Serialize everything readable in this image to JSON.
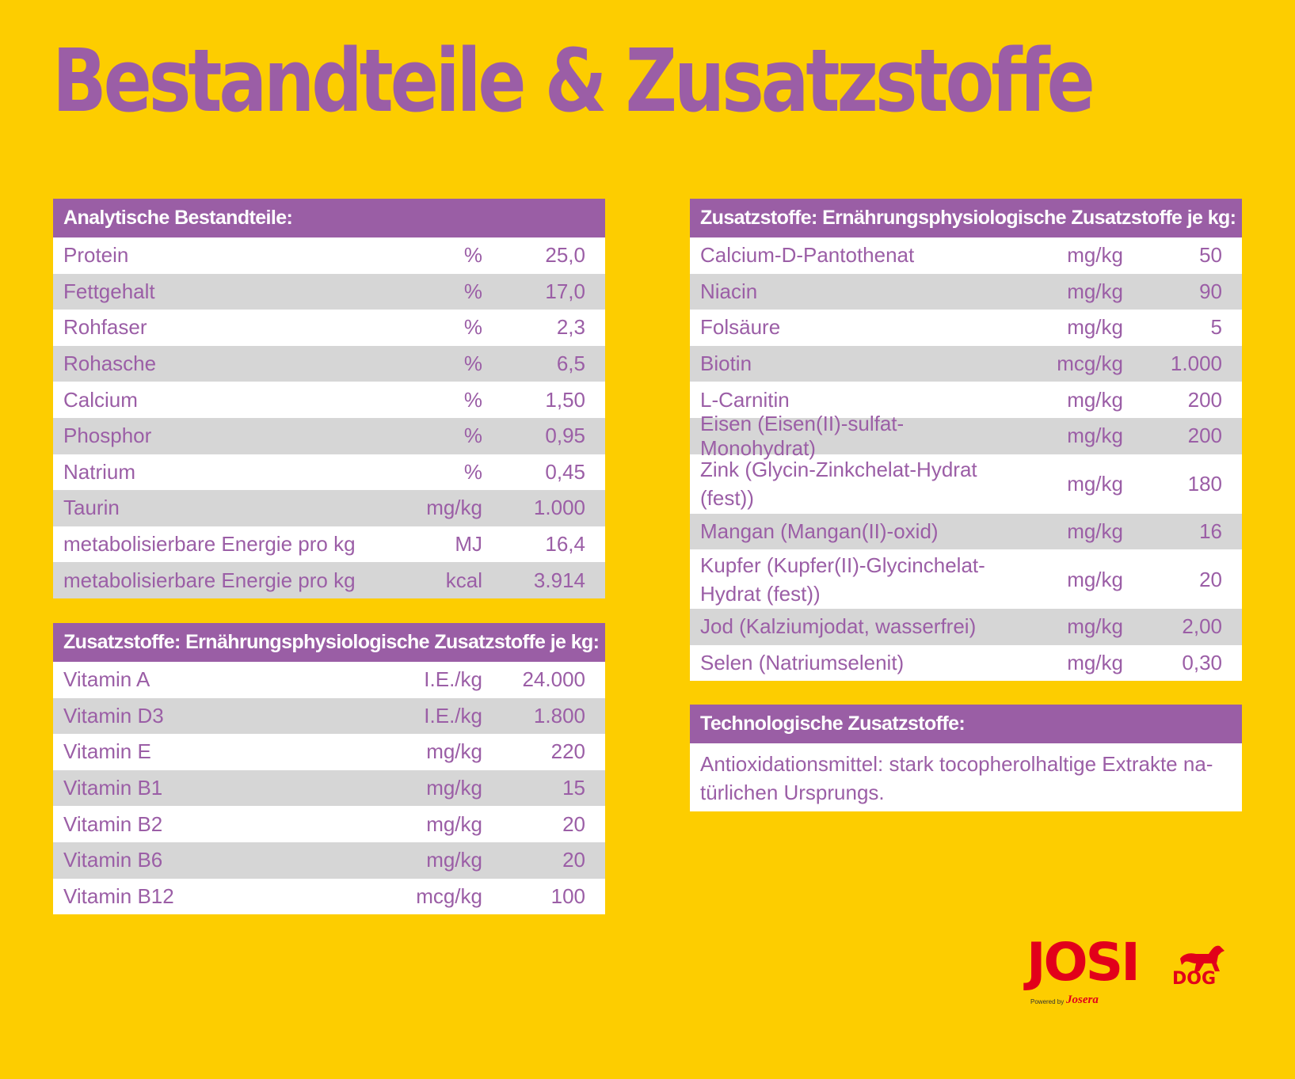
{
  "page_title": "Bestandteile & Zusatzstoffe",
  "analytical": {
    "header": "Analytische Bestandteile:",
    "rows": [
      {
        "name": "Protein",
        "unit": "%",
        "value": "25,0"
      },
      {
        "name": "Fettgehalt",
        "unit": "%",
        "value": "17,0"
      },
      {
        "name": "Rohfaser",
        "unit": "%",
        "value": "2,3"
      },
      {
        "name": "Rohasche",
        "unit": "%",
        "value": "6,5"
      },
      {
        "name": "Calcium",
        "unit": "%",
        "value": "1,50"
      },
      {
        "name": "Phosphor",
        "unit": "%",
        "value": "0,95"
      },
      {
        "name": "Natrium",
        "unit": "%",
        "value": "0,45"
      },
      {
        "name": "Taurin",
        "unit": "mg/kg",
        "value": "1.000"
      },
      {
        "name": "metabolisierbare Energie pro kg",
        "unit": "MJ",
        "value": "16,4"
      },
      {
        "name": "metabolisierbare Energie pro kg",
        "unit": "kcal",
        "value": "3.914"
      }
    ]
  },
  "vitamins": {
    "header": "Zusatzstoffe: Ernährungsphysiologische Zusatzstoffe je kg:",
    "rows": [
      {
        "name": "Vitamin A",
        "unit": "I.E./kg",
        "value": "24.000"
      },
      {
        "name": "Vitamin D3",
        "unit": "I.E./kg",
        "value": "1.800"
      },
      {
        "name": "Vitamin E",
        "unit": "mg/kg",
        "value": "220"
      },
      {
        "name": "Vitamin B1",
        "unit": "mg/kg",
        "value": "15"
      },
      {
        "name": "Vitamin B2",
        "unit": "mg/kg",
        "value": "20"
      },
      {
        "name": "Vitamin B6",
        "unit": "mg/kg",
        "value": "20"
      },
      {
        "name": "Vitamin B12",
        "unit": "mcg/kg",
        "value": "100"
      }
    ]
  },
  "additives": {
    "header": "Zusatzstoffe: Ernährungsphysiologische Zusatzstoffe je kg:",
    "rows": [
      {
        "name": "Calcium-D-Pantothenat",
        "unit": "mg/kg",
        "value": "50"
      },
      {
        "name": "Niacin",
        "unit": "mg/kg",
        "value": "90"
      },
      {
        "name": "Folsäure",
        "unit": "mg/kg",
        "value": "5"
      },
      {
        "name": "Biotin",
        "unit": "mcg/kg",
        "value": "1.000"
      },
      {
        "name": "L-Carnitin",
        "unit": "mg/kg",
        "value": "200"
      },
      {
        "name": "Eisen (Eisen(II)-sulfat-Monohydrat)",
        "unit": "mg/kg",
        "value": "200"
      },
      {
        "name": "Zink (Glycin-Zinkchelat-Hydrat (fest))",
        "unit": "mg/kg",
        "value": "180"
      },
      {
        "name": "Mangan (Mangan(II)-oxid)",
        "unit": "mg/kg",
        "value": "16"
      },
      {
        "name": "Kupfer (Kupfer(II)-Glycinchelat-Hydrat (fest))",
        "unit": "mg/kg",
        "value": "20"
      },
      {
        "name": "Jod (Kalziumjodat, wasserfrei)",
        "unit": "mg/kg",
        "value": "2,00"
      },
      {
        "name": "Selen (Natriumselenit)",
        "unit": "mg/kg",
        "value": "0,30"
      }
    ]
  },
  "technological": {
    "header": "Technologische Zusatzstoffe:",
    "text": "Antioxidationsmittel: stark tocopherolhaltige Extrakte na-türlichen Ursprungs."
  },
  "logo": {
    "brand": "JOSI",
    "sub": "DOG",
    "powered_by": "Powered by",
    "parent": "Josera",
    "color": "#e2001a"
  },
  "colors": {
    "background": "#fdcd00",
    "accent": "#9a5ea5",
    "row_alt": "#d6d6d6"
  }
}
